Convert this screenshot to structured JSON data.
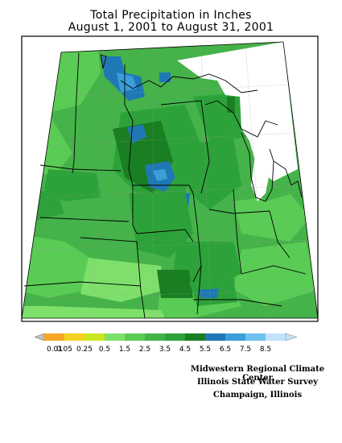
{
  "title": {
    "line1": "Total Precipitation in Inches",
    "line2": "August 1, 2001 to August 31, 2001"
  },
  "legend": {
    "labels": [
      "0.01",
      "0.05",
      "0.25",
      "0.5",
      "1.5",
      "2.5",
      "3.5",
      "4.5",
      "5.5",
      "6.5",
      "7.5",
      "8.5"
    ],
    "colors": [
      "#bfbfbf",
      "#f6a623",
      "#f2d21e",
      "#c8e61e",
      "#7ee06a",
      "#5acb55",
      "#45b24a",
      "#2da23a",
      "#1a7e23",
      "#1f78b4",
      "#3a9fd8",
      "#6ec1f0",
      "#bfe3fb"
    ]
  },
  "colors": {
    "light_green": "#5acb55",
    "mid_green": "#45b24a",
    "green": "#2da23a",
    "dark_green": "#1a7e23",
    "pale_green": "#7ee06a",
    "blue": "#1f78b4",
    "light_blue": "#3a9fd8",
    "pale_blue": "#6ec1f0"
  },
  "credits": {
    "line1": "Midwestern Regional Climate Center",
    "line2": "Illinois State Water Survey",
    "line3": "Champaign, Illinois"
  }
}
